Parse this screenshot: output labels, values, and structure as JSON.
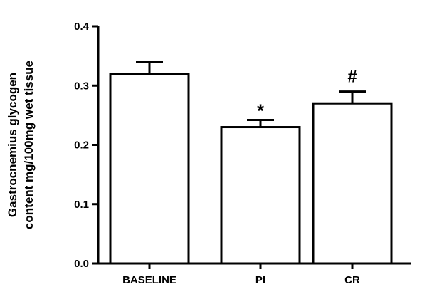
{
  "chart_data": {
    "type": "bar",
    "title": "",
    "ylabel_lines": [
      "Gastrocnemius glycogen",
      "content mg/100mg wet tissue"
    ],
    "xlabel": "",
    "categories": [
      "BASELINE",
      "PI",
      "CR"
    ],
    "values": [
      0.32,
      0.23,
      0.27
    ],
    "errors": [
      0.02,
      0.012,
      0.02
    ],
    "annotations": [
      "",
      "*",
      "#"
    ],
    "ylim": [
      0.0,
      0.4
    ],
    "yticks": [
      "0.0",
      "0.1",
      "0.2",
      "0.3",
      "0.4"
    ],
    "grid": false,
    "bar_fill": "#ffffff",
    "bar_stroke": "#000000"
  }
}
